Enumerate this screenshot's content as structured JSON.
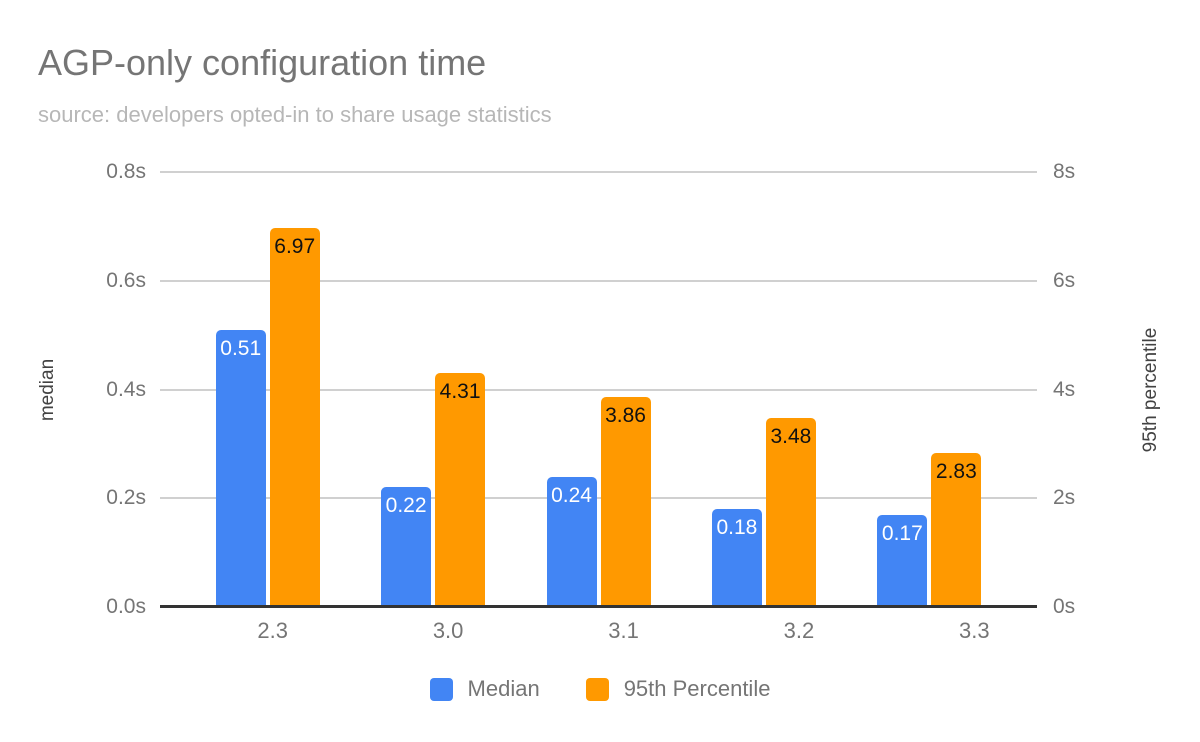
{
  "title": "AGP-only configuration time",
  "subtitle": "source: developers opted-in to share usage statistics",
  "colors": {
    "median_bar": "#4285F4",
    "p95_bar": "#FF9900",
    "median_value_label": "#ffffff",
    "p95_value_label": "#111111",
    "title_text": "#757575",
    "subtitle_text": "#b7b7b7",
    "tick_text": "#757575",
    "axis_title_text": "#424242",
    "gridline": "#d0d0d0",
    "baseline": "#333333"
  },
  "chart_data": {
    "type": "bar",
    "title": "AGP-only configuration time",
    "subtitle": "source: developers opted-in to share usage statistics",
    "categories": [
      "2.3",
      "3.0",
      "3.1",
      "3.2",
      "3.3"
    ],
    "series": [
      {
        "name": "Median",
        "axis": "left",
        "color": "#4285F4",
        "label_color": "#ffffff",
        "values": [
          0.51,
          0.22,
          0.24,
          0.18,
          0.17
        ],
        "labels": [
          "0.51",
          "0.22",
          "0.24",
          "0.18",
          "0.17"
        ]
      },
      {
        "name": "95th Percentile",
        "axis": "right",
        "color": "#FF9900",
        "label_color": "#111111",
        "values": [
          6.97,
          4.31,
          3.86,
          3.48,
          2.83
        ],
        "labels": [
          "6.97",
          "4.31",
          "3.86",
          "3.48",
          "2.83"
        ]
      }
    ],
    "left_axis": {
      "label": "median",
      "ticks": [
        "0.0s",
        "0.2s",
        "0.4s",
        "0.6s",
        "0.8s"
      ],
      "min": 0,
      "max": 0.8
    },
    "right_axis": {
      "label": "95th percentile",
      "ticks": [
        "0s",
        "2s",
        "4s",
        "6s",
        "8s"
      ],
      "min": 0,
      "max": 8
    },
    "legend": {
      "position": "bottom",
      "entries": [
        "Median",
        "95th Percentile"
      ]
    },
    "grid": true
  }
}
